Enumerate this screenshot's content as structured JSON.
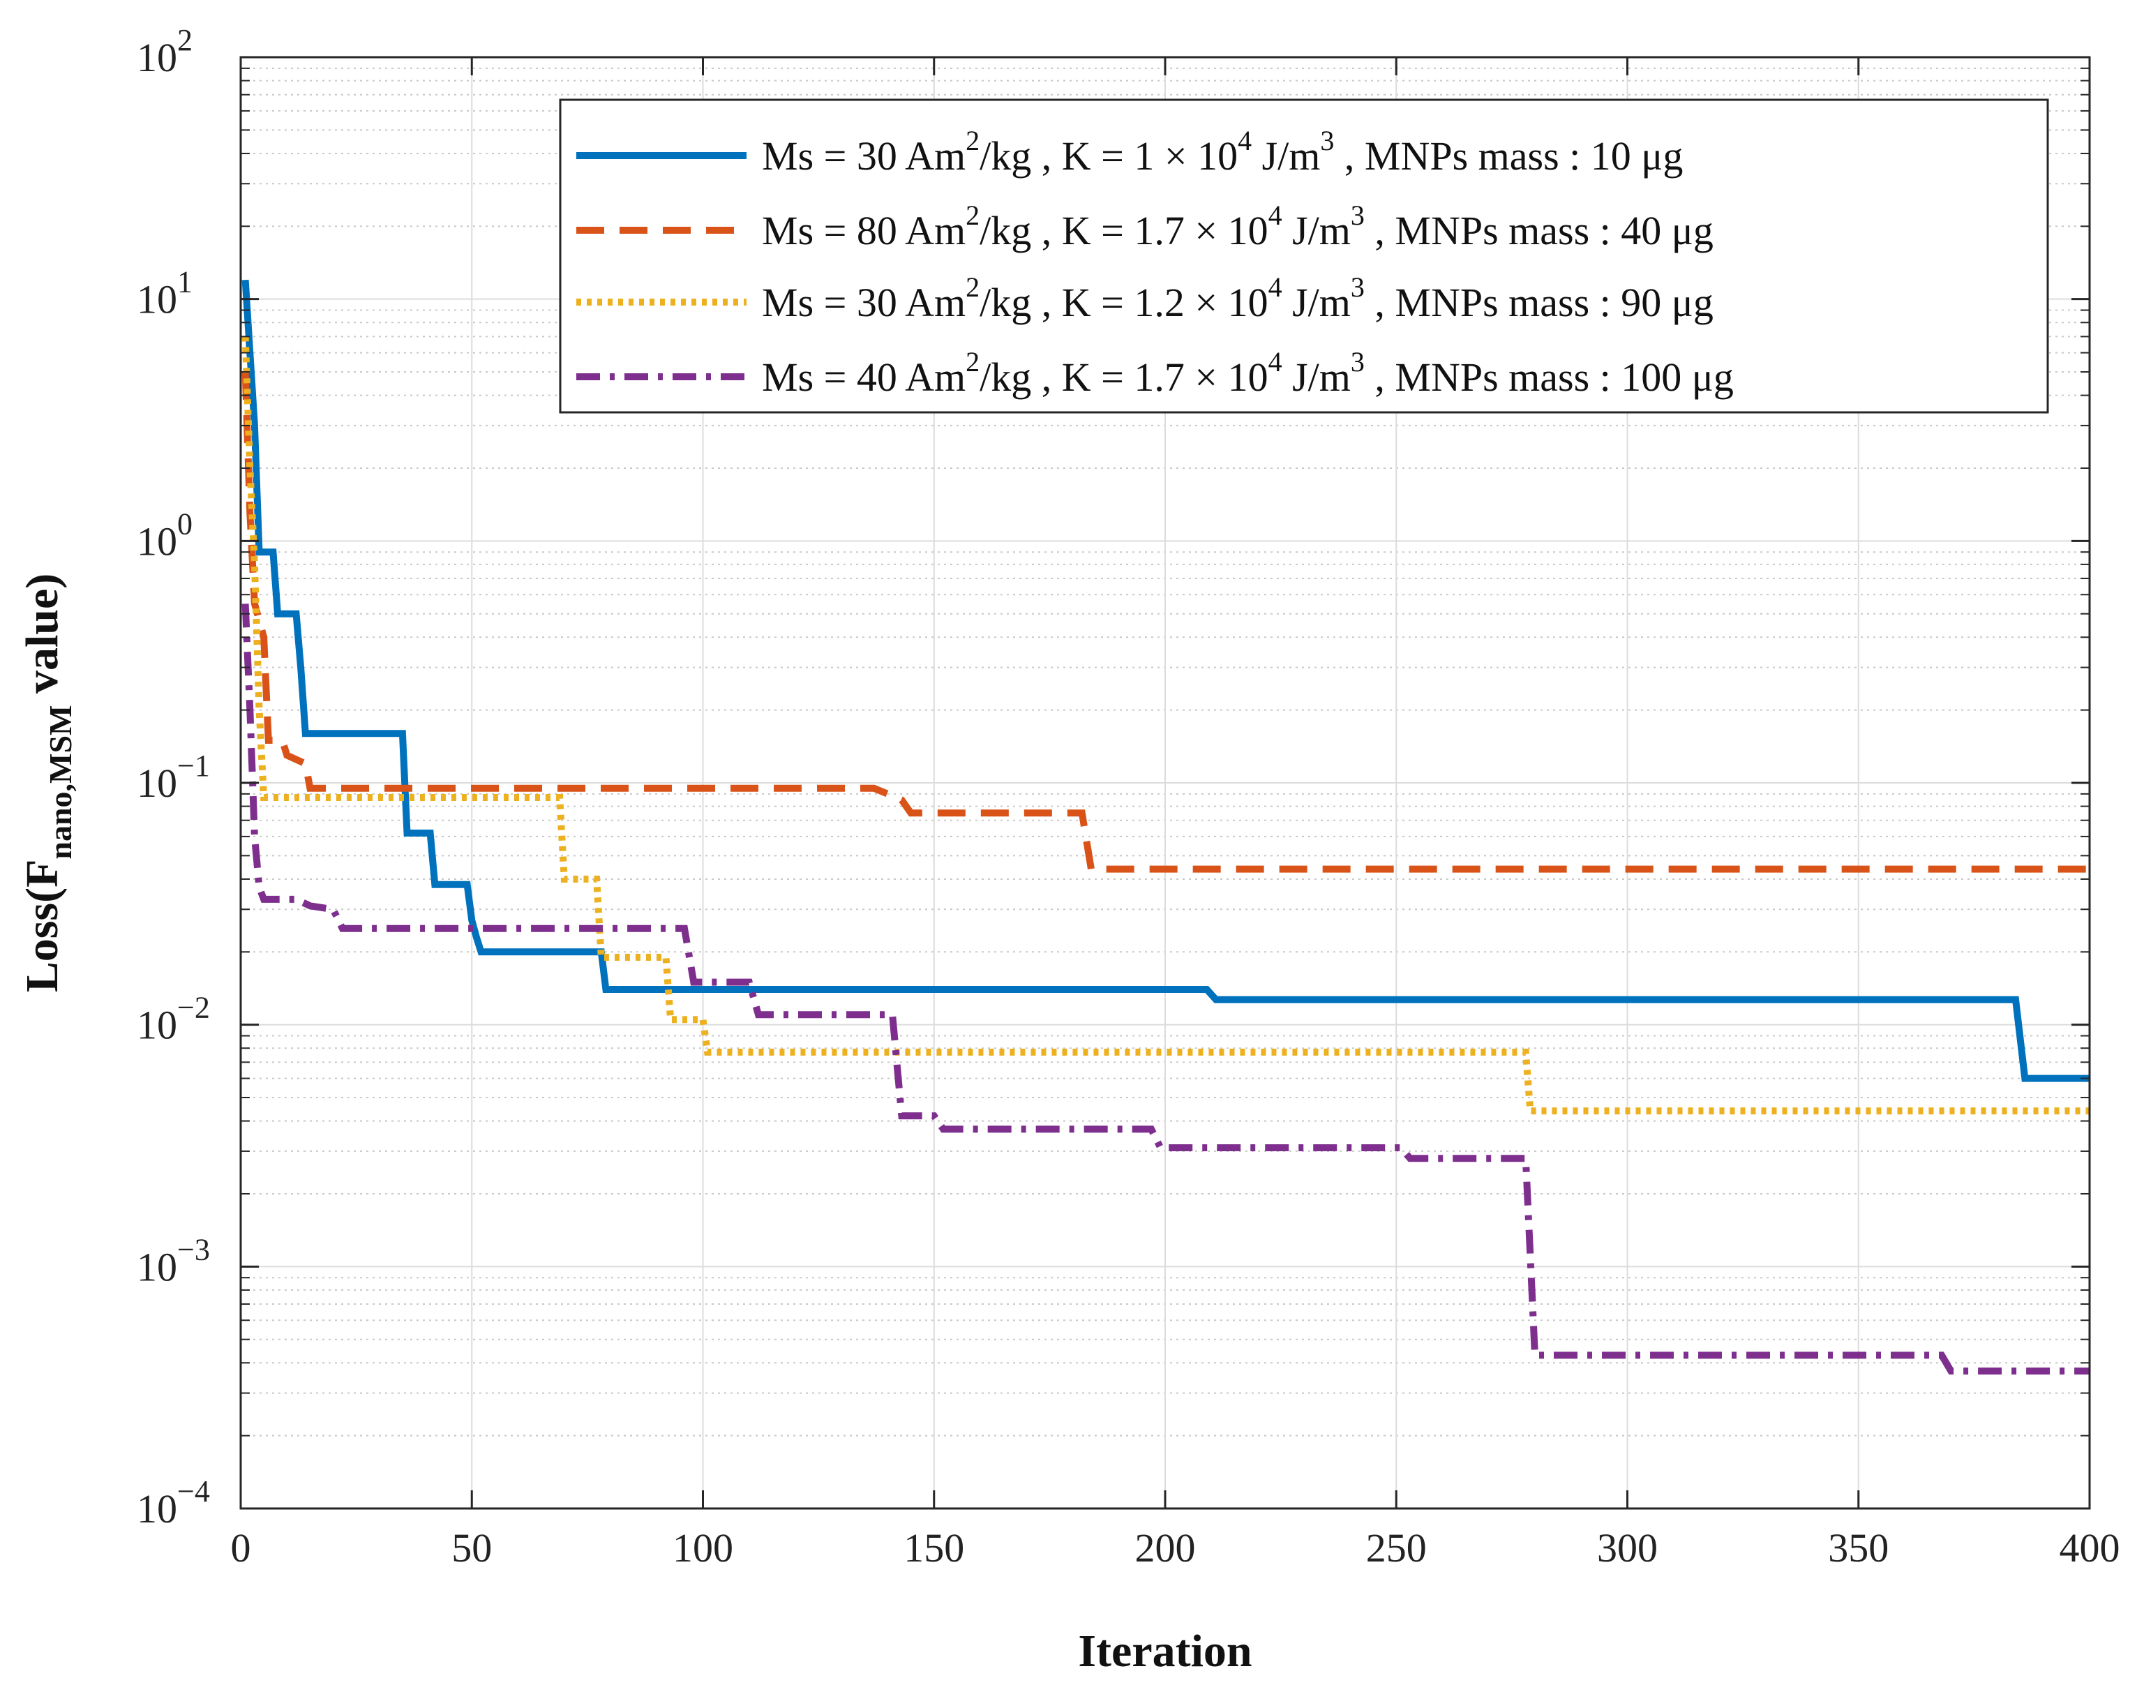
{
  "chart_data": {
    "type": "line",
    "title": "",
    "xlabel": "Iteration",
    "ylabel": {
      "prefix": "Loss(F",
      "subscript": "nano,MSM",
      "suffix": " value)"
    },
    "xlim": [
      0,
      400
    ],
    "ylim": [
      0.0001,
      100
    ],
    "yscale": "log",
    "grid": true,
    "legend_position": "top-right",
    "x_ticks": [
      0,
      50,
      100,
      150,
      200,
      250,
      300,
      350,
      400
    ],
    "y_ticks": [
      {
        "value": 0.0001,
        "base": "10",
        "exp": "−4"
      },
      {
        "value": 0.001,
        "base": "10",
        "exp": "−3"
      },
      {
        "value": 0.01,
        "base": "10",
        "exp": "−2"
      },
      {
        "value": 0.1,
        "base": "10",
        "exp": "−1"
      },
      {
        "value": 1,
        "base": "10",
        "exp": "0"
      },
      {
        "value": 10,
        "base": "10",
        "exp": "1"
      },
      {
        "value": 100,
        "base": "10",
        "exp": "2"
      }
    ],
    "series": [
      {
        "name": "Ms = 30 Am²/kg , K = 1 × 10⁴ J/m³ , MNPs mass : 10 μg",
        "legend_parts": [
          "Ms = 30 Am",
          "2",
          "/kg , K = 1 × 10",
          "4",
          " J/m",
          "3",
          " , MNPs mass : 10 μg"
        ],
        "color": "#0072BD",
        "style": "solid",
        "points": [
          [
            1,
            12
          ],
          [
            3,
            3
          ],
          [
            4,
            0.9
          ],
          [
            7,
            0.9
          ],
          [
            8,
            0.5
          ],
          [
            12,
            0.5
          ],
          [
            13,
            0.3
          ],
          [
            14,
            0.16
          ],
          [
            35,
            0.16
          ],
          [
            36,
            0.062
          ],
          [
            41,
            0.062
          ],
          [
            42,
            0.038
          ],
          [
            49,
            0.038
          ],
          [
            50,
            0.027
          ],
          [
            51,
            0.023
          ],
          [
            52,
            0.02
          ],
          [
            78,
            0.02
          ],
          [
            79,
            0.014
          ],
          [
            209,
            0.014
          ],
          [
            211,
            0.0127
          ],
          [
            384,
            0.0127
          ],
          [
            386,
            0.006
          ],
          [
            400,
            0.006
          ]
        ]
      },
      {
        "name": "Ms = 80 Am²/kg , K = 1.7 × 10⁴ J/m³ , MNPs mass : 40 μg",
        "legend_parts": [
          "Ms = 80 Am",
          "2",
          "/kg , K = 1.7 × 10",
          "4",
          " J/m",
          "3",
          " , MNPs mass : 40 μg"
        ],
        "color": "#D95319",
        "style": "dashed",
        "points": [
          [
            1,
            5
          ],
          [
            2,
            1.3
          ],
          [
            3,
            0.55
          ],
          [
            5,
            0.4
          ],
          [
            6,
            0.15
          ],
          [
            9,
            0.15
          ],
          [
            10,
            0.13
          ],
          [
            14,
            0.12
          ],
          [
            15,
            0.095
          ],
          [
            137,
            0.095
          ],
          [
            140,
            0.09
          ],
          [
            143,
            0.085
          ],
          [
            145,
            0.075
          ],
          [
            182,
            0.075
          ],
          [
            184,
            0.044
          ],
          [
            400,
            0.044
          ]
        ]
      },
      {
        "name": "Ms = 30 Am²/kg , K = 1.2 × 10⁴ J/m³ , MNPs mass : 90 μg",
        "legend_parts": [
          "Ms = 30 Am",
          "2",
          "/kg , K = 1.2 × 10",
          "4",
          " J/m",
          "3",
          " , MNPs mass : 90 μg"
        ],
        "color": "#EDB120",
        "style": "dotted",
        "points": [
          [
            1,
            7
          ],
          [
            2,
            2
          ],
          [
            3,
            0.8
          ],
          [
            4,
            0.2
          ],
          [
            5,
            0.087
          ],
          [
            69,
            0.087
          ],
          [
            70,
            0.04
          ],
          [
            77,
            0.04
          ],
          [
            78,
            0.019
          ],
          [
            92,
            0.019
          ],
          [
            93,
            0.0105
          ],
          [
            100,
            0.0105
          ],
          [
            101,
            0.0077
          ],
          [
            278,
            0.0077
          ],
          [
            279,
            0.0044
          ],
          [
            400,
            0.0044
          ]
        ]
      },
      {
        "name": "Ms = 40 Am²/kg , K = 1.7 × 10⁴ J/m³ , MNPs mass : 100 μg",
        "legend_parts": [
          "Ms = 40 Am",
          "2",
          "/kg , K = 1.7 × 10",
          "4",
          " J/m",
          "3",
          " , MNPs mass : 100 μg"
        ],
        "color": "#7E2F8E",
        "style": "dashdot",
        "points": [
          [
            1,
            0.55
          ],
          [
            2,
            0.2
          ],
          [
            3,
            0.06
          ],
          [
            4,
            0.037
          ],
          [
            5,
            0.033
          ],
          [
            12,
            0.033
          ],
          [
            15,
            0.031
          ],
          [
            20,
            0.03
          ],
          [
            22,
            0.025
          ],
          [
            96,
            0.025
          ],
          [
            98,
            0.015
          ],
          [
            110,
            0.015
          ],
          [
            112,
            0.011
          ],
          [
            141,
            0.011
          ],
          [
            143,
            0.0042
          ],
          [
            150,
            0.0042
          ],
          [
            152,
            0.0037
          ],
          [
            197,
            0.0037
          ],
          [
            199,
            0.0031
          ],
          [
            251,
            0.0031
          ],
          [
            253,
            0.0028
          ],
          [
            278,
            0.0028
          ],
          [
            280,
            0.00043
          ],
          [
            368,
            0.00043
          ],
          [
            370,
            0.00037
          ],
          [
            400,
            0.00037
          ]
        ]
      }
    ]
  }
}
